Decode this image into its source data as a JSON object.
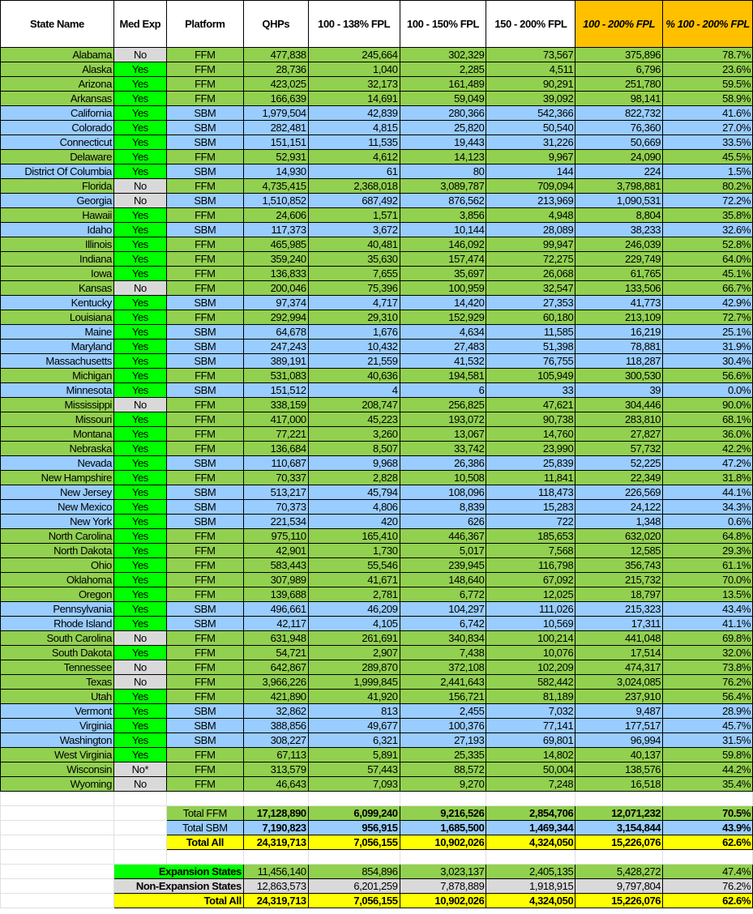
{
  "headers": [
    "State Name",
    "Med Exp",
    "Platform",
    "QHPs",
    "100 - 138% FPL",
    "100 - 150% FPL",
    "150 - 200% FPL",
    "100 - 200% FPL",
    "% 100 - 200% FPL"
  ],
  "colors": {
    "ffm": "#92d050",
    "sbm": "#99ccff",
    "yes": "#00ff00",
    "no": "#d9d9d9",
    "highlight": "#ffc000",
    "total": "#ffff00"
  },
  "rows": [
    [
      "Alabama",
      "No",
      "FFM",
      "477,838",
      "245,664",
      "302,329",
      "73,567",
      "375,896",
      "78.7%"
    ],
    [
      "Alaska",
      "Yes",
      "FFM",
      "28,736",
      "1,040",
      "2,285",
      "4,511",
      "6,796",
      "23.6%"
    ],
    [
      "Arizona",
      "Yes",
      "FFM",
      "423,025",
      "32,173",
      "161,489",
      "90,291",
      "251,780",
      "59.5%"
    ],
    [
      "Arkansas",
      "Yes",
      "FFM",
      "166,639",
      "14,691",
      "59,049",
      "39,092",
      "98,141",
      "58.9%"
    ],
    [
      "California",
      "Yes",
      "SBM",
      "1,979,504",
      "42,839",
      "280,366",
      "542,366",
      "822,732",
      "41.6%"
    ],
    [
      "Colorado",
      "Yes",
      "SBM",
      "282,481",
      "4,815",
      "25,820",
      "50,540",
      "76,360",
      "27.0%"
    ],
    [
      "Connecticut",
      "Yes",
      "SBM",
      "151,151",
      "11,535",
      "19,443",
      "31,226",
      "50,669",
      "33.5%"
    ],
    [
      "Delaware",
      "Yes",
      "FFM",
      "52,931",
      "4,612",
      "14,123",
      "9,967",
      "24,090",
      "45.5%"
    ],
    [
      "District Of Columbia",
      "Yes",
      "SBM",
      "14,930",
      "61",
      "80",
      "144",
      "224",
      "1.5%"
    ],
    [
      "Florida",
      "No",
      "FFM",
      "4,735,415",
      "2,368,018",
      "3,089,787",
      "709,094",
      "3,798,881",
      "80.2%"
    ],
    [
      "Georgia",
      "No",
      "SBM",
      "1,510,852",
      "687,492",
      "876,562",
      "213,969",
      "1,090,531",
      "72.2%"
    ],
    [
      "Hawaii",
      "Yes",
      "FFM",
      "24,606",
      "1,571",
      "3,856",
      "4,948",
      "8,804",
      "35.8%"
    ],
    [
      "Idaho",
      "Yes",
      "SBM",
      "117,373",
      "3,672",
      "10,144",
      "28,089",
      "38,233",
      "32.6%"
    ],
    [
      "Illinois",
      "Yes",
      "FFM",
      "465,985",
      "40,481",
      "146,092",
      "99,947",
      "246,039",
      "52.8%"
    ],
    [
      "Indiana",
      "Yes",
      "FFM",
      "359,240",
      "35,630",
      "157,474",
      "72,275",
      "229,749",
      "64.0%"
    ],
    [
      "Iowa",
      "Yes",
      "FFM",
      "136,833",
      "7,655",
      "35,697",
      "26,068",
      "61,765",
      "45.1%"
    ],
    [
      "Kansas",
      "No",
      "FFM",
      "200,046",
      "75,396",
      "100,959",
      "32,547",
      "133,506",
      "66.7%"
    ],
    [
      "Kentucky",
      "Yes",
      "SBM",
      "97,374",
      "4,717",
      "14,420",
      "27,353",
      "41,773",
      "42.9%"
    ],
    [
      "Louisiana",
      "Yes",
      "FFM",
      "292,994",
      "29,310",
      "152,929",
      "60,180",
      "213,109",
      "72.7%"
    ],
    [
      "Maine",
      "Yes",
      "SBM",
      "64,678",
      "1,676",
      "4,634",
      "11,585",
      "16,219",
      "25.1%"
    ],
    [
      "Maryland",
      "Yes",
      "SBM",
      "247,243",
      "10,432",
      "27,483",
      "51,398",
      "78,881",
      "31.9%"
    ],
    [
      "Massachusetts",
      "Yes",
      "SBM",
      "389,191",
      "21,559",
      "41,532",
      "76,755",
      "118,287",
      "30.4%"
    ],
    [
      "Michigan",
      "Yes",
      "FFM",
      "531,083",
      "40,636",
      "194,581",
      "105,949",
      "300,530",
      "56.6%"
    ],
    [
      "Minnesota",
      "Yes",
      "SBM",
      "151,512",
      "4",
      "6",
      "33",
      "39",
      "0.0%"
    ],
    [
      "Mississippi",
      "No",
      "FFM",
      "338,159",
      "208,747",
      "256,825",
      "47,621",
      "304,446",
      "90.0%"
    ],
    [
      "Missouri",
      "Yes",
      "FFM",
      "417,000",
      "45,223",
      "193,072",
      "90,738",
      "283,810",
      "68.1%"
    ],
    [
      "Montana",
      "Yes",
      "FFM",
      "77,221",
      "3,260",
      "13,067",
      "14,760",
      "27,827",
      "36.0%"
    ],
    [
      "Nebraska",
      "Yes",
      "FFM",
      "136,684",
      "8,507",
      "33,742",
      "23,990",
      "57,732",
      "42.2%"
    ],
    [
      "Nevada",
      "Yes",
      "SBM",
      "110,687",
      "9,968",
      "26,386",
      "25,839",
      "52,225",
      "47.2%"
    ],
    [
      "New Hampshire",
      "Yes",
      "FFM",
      "70,337",
      "2,828",
      "10,508",
      "11,841",
      "22,349",
      "31.8%"
    ],
    [
      "New Jersey",
      "Yes",
      "SBM",
      "513,217",
      "45,794",
      "108,096",
      "118,473",
      "226,569",
      "44.1%"
    ],
    [
      "New Mexico",
      "Yes",
      "SBM",
      "70,373",
      "4,806",
      "8,839",
      "15,283",
      "24,122",
      "34.3%"
    ],
    [
      "New York",
      "Yes",
      "SBM",
      "221,534",
      "420",
      "626",
      "722",
      "1,348",
      "0.6%"
    ],
    [
      "North Carolina",
      "Yes",
      "FFM",
      "975,110",
      "165,410",
      "446,367",
      "185,653",
      "632,020",
      "64.8%"
    ],
    [
      "North Dakota",
      "Yes",
      "FFM",
      "42,901",
      "1,730",
      "5,017",
      "7,568",
      "12,585",
      "29.3%"
    ],
    [
      "Ohio",
      "Yes",
      "FFM",
      "583,443",
      "55,546",
      "239,945",
      "116,798",
      "356,743",
      "61.1%"
    ],
    [
      "Oklahoma",
      "Yes",
      "FFM",
      "307,989",
      "41,671",
      "148,640",
      "67,092",
      "215,732",
      "70.0%"
    ],
    [
      "Oregon",
      "Yes",
      "FFM",
      "139,688",
      "2,781",
      "6,772",
      "12,025",
      "18,797",
      "13.5%"
    ],
    [
      "Pennsylvania",
      "Yes",
      "SBM",
      "496,661",
      "46,209",
      "104,297",
      "111,026",
      "215,323",
      "43.4%"
    ],
    [
      "Rhode Island",
      "Yes",
      "SBM",
      "42,117",
      "4,105",
      "6,742",
      "10,569",
      "17,311",
      "41.1%"
    ],
    [
      "South Carolina",
      "No",
      "FFM",
      "631,948",
      "261,691",
      "340,834",
      "100,214",
      "441,048",
      "69.8%"
    ],
    [
      "South Dakota",
      "Yes",
      "FFM",
      "54,721",
      "2,907",
      "7,438",
      "10,076",
      "17,514",
      "32.0%"
    ],
    [
      "Tennessee",
      "No",
      "FFM",
      "642,867",
      "289,870",
      "372,108",
      "102,209",
      "474,317",
      "73.8%"
    ],
    [
      "Texas",
      "No",
      "FFM",
      "3,966,226",
      "1,999,845",
      "2,441,643",
      "582,442",
      "3,024,085",
      "76.2%"
    ],
    [
      "Utah",
      "Yes",
      "FFM",
      "421,890",
      "41,920",
      "156,721",
      "81,189",
      "237,910",
      "56.4%"
    ],
    [
      "Vermont",
      "Yes",
      "SBM",
      "32,862",
      "813",
      "2,455",
      "7,032",
      "9,487",
      "28.9%"
    ],
    [
      "Virginia",
      "Yes",
      "SBM",
      "388,856",
      "49,677",
      "100,376",
      "77,141",
      "177,517",
      "45.7%"
    ],
    [
      "Washington",
      "Yes",
      "SBM",
      "308,227",
      "6,321",
      "27,193",
      "69,801",
      "96,994",
      "31.5%"
    ],
    [
      "West Virginia",
      "Yes",
      "FFM",
      "67,113",
      "5,891",
      "25,335",
      "14,802",
      "40,137",
      "59.8%"
    ],
    [
      "Wisconsin",
      "No*",
      "FFM",
      "313,579",
      "57,443",
      "88,572",
      "50,004",
      "138,576",
      "44.2%"
    ],
    [
      "Wyoming",
      "No",
      "FFM",
      "46,643",
      "7,093",
      "9,270",
      "7,248",
      "16,518",
      "35.4%"
    ]
  ],
  "platform_totals": [
    [
      "Total FFM",
      "17,128,890",
      "6,099,240",
      "9,216,526",
      "2,854,706",
      "12,071,232",
      "70.5%"
    ],
    [
      "Total SBM",
      "7,190,823",
      "956,915",
      "1,685,500",
      "1,469,344",
      "3,154,844",
      "43.9%"
    ],
    [
      "Total All",
      "24,319,713",
      "7,056,155",
      "10,902,026",
      "4,324,050",
      "15,226,076",
      "62.6%"
    ]
  ],
  "expansion_totals": [
    [
      "Expansion States",
      "11,456,140",
      "854,896",
      "3,023,137",
      "2,405,135",
      "5,428,272",
      "47.4%"
    ],
    [
      "Non-Expansion States",
      "12,863,573",
      "6,201,259",
      "7,878,889",
      "1,918,915",
      "9,797,804",
      "76.2%"
    ],
    [
      "Total All",
      "24,319,713",
      "7,056,155",
      "10,902,026",
      "4,324,050",
      "15,226,076",
      "62.6%"
    ]
  ]
}
